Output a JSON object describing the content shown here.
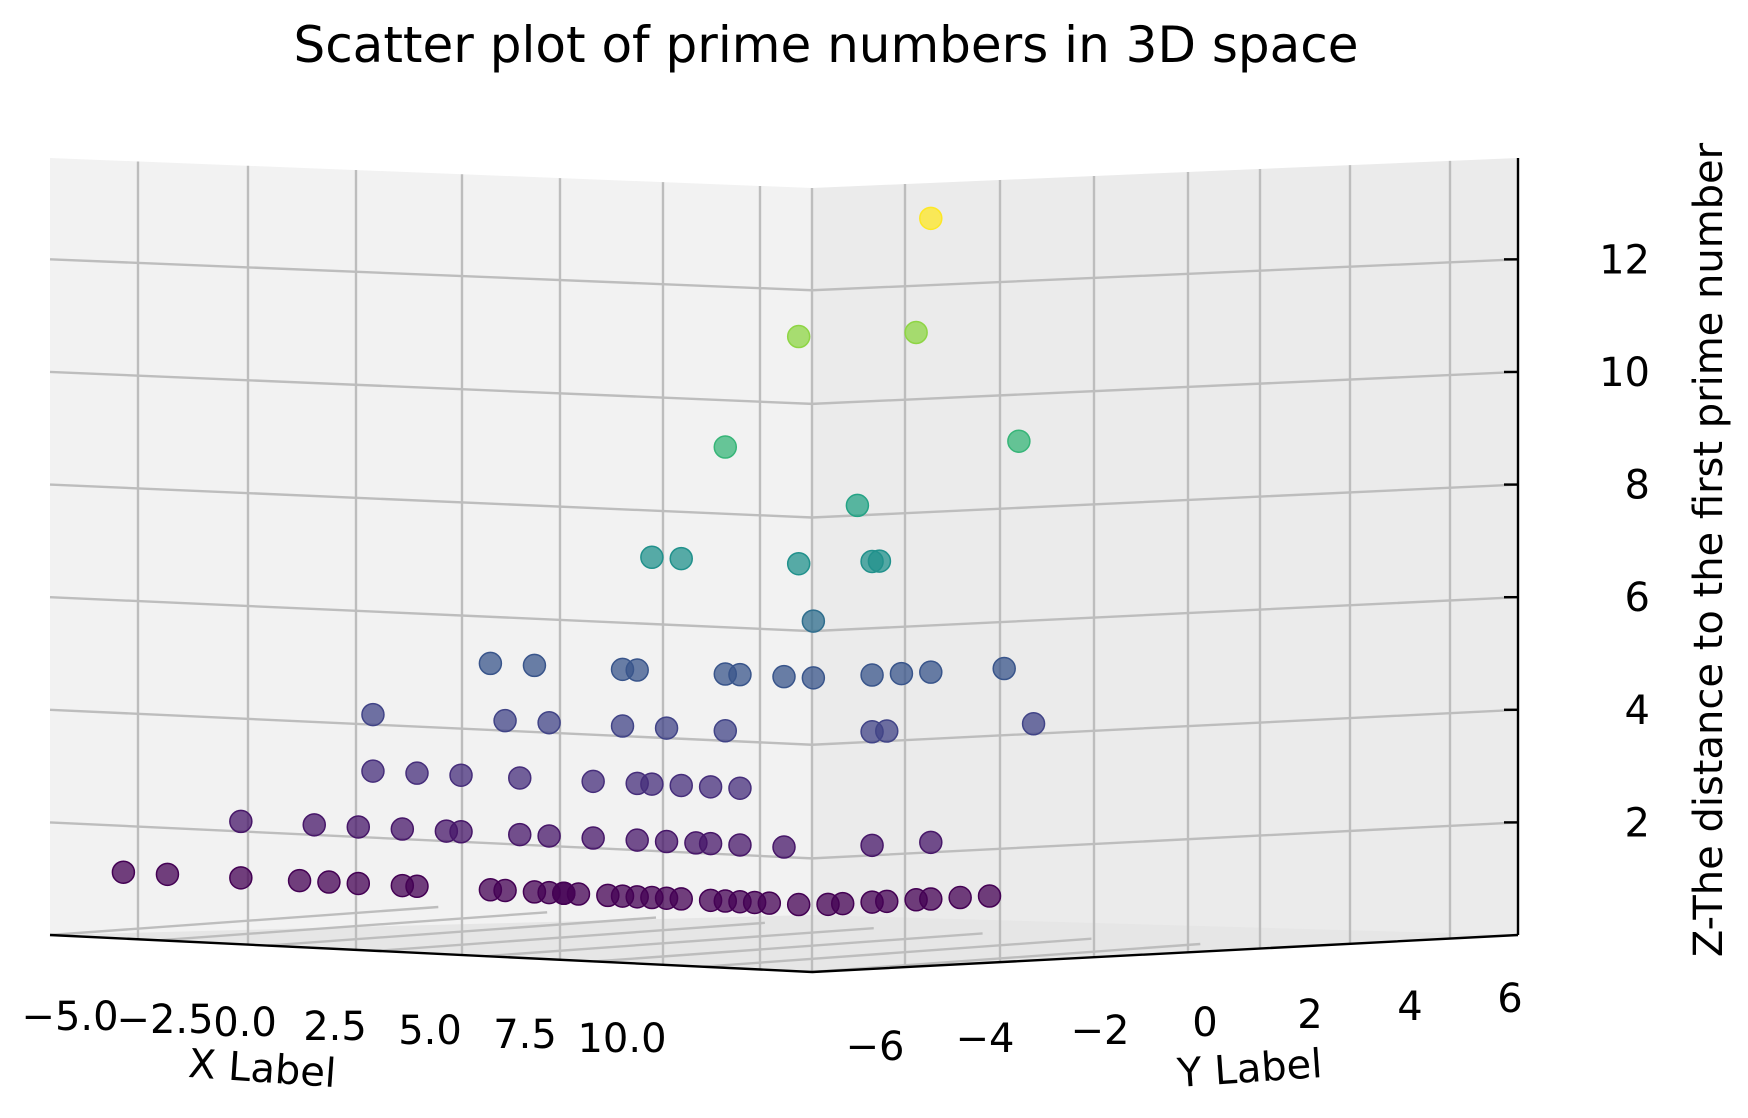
{
  "chart_data": {
    "type": "scatter",
    "title": "Scatter plot of prime numbers in 3D space",
    "xlabel": "X Label",
    "ylabel": "Y Label",
    "zlabel": "Z-The distance to the first prime number",
    "x_ticks": [
      "−5.0",
      "−2.5",
      "0.0",
      "2.5",
      "5.0",
      "7.5",
      "10.0"
    ],
    "y_ticks": [
      "−6",
      "−4",
      "−2",
      "0",
      "2",
      "4",
      "6"
    ],
    "z_ticks": [
      "2",
      "4",
      "6",
      "8",
      "10",
      "12"
    ],
    "z_range": [
      0.0,
      13.8
    ],
    "colormap": "viridis",
    "colors": {
      "low": "#440154",
      "mid": "#21918c",
      "high": "#fde725",
      "pane": "#f2f2f2",
      "grid": "#bdbdbd"
    },
    "points_note_none": "",
    "series": [
      {
        "values": [
          {
            "h": 0.05,
            "z": 1.0
          },
          {
            "h": 0.08,
            "z": 1.0
          },
          {
            "h": 0.13,
            "z": 1.0
          },
          {
            "h": 0.17,
            "z": 1.0
          },
          {
            "h": 0.19,
            "z": 1.0
          },
          {
            "h": 0.21,
            "z": 1.0
          },
          {
            "h": 0.24,
            "z": 1.0
          },
          {
            "h": 0.25,
            "z": 1.0
          },
          {
            "h": 0.3,
            "z": 1.0
          },
          {
            "h": 0.31,
            "z": 1.0
          },
          {
            "h": 0.33,
            "z": 1.0
          },
          {
            "h": 0.34,
            "z": 1.0
          },
          {
            "h": 0.35,
            "z": 1.0
          },
          {
            "h": 0.35,
            "z": 1.0
          },
          {
            "h": 0.36,
            "z": 1.0
          },
          {
            "h": 0.38,
            "z": 1.0
          },
          {
            "h": 0.39,
            "z": 1.0
          },
          {
            "h": 0.4,
            "z": 1.0
          },
          {
            "h": 0.41,
            "z": 1.0
          },
          {
            "h": 0.42,
            "z": 1.0
          },
          {
            "h": 0.43,
            "z": 1.0
          },
          {
            "h": 0.45,
            "z": 1.0
          },
          {
            "h": 0.46,
            "z": 1.0
          },
          {
            "h": 0.47,
            "z": 1.0
          },
          {
            "h": 0.48,
            "z": 1.0
          },
          {
            "h": 0.49,
            "z": 1.0
          },
          {
            "h": 0.51,
            "z": 1.0
          },
          {
            "h": 0.53,
            "z": 1.0
          },
          {
            "h": 0.54,
            "z": 1.0
          },
          {
            "h": 0.56,
            "z": 1.0
          },
          {
            "h": 0.57,
            "z": 1.0
          },
          {
            "h": 0.59,
            "z": 1.0
          },
          {
            "h": 0.6,
            "z": 1.0
          },
          {
            "h": 0.62,
            "z": 1.0
          },
          {
            "h": 0.64,
            "z": 1.0
          },
          {
            "h": 0.13,
            "z": 2.0
          },
          {
            "h": 0.18,
            "z": 2.0
          },
          {
            "h": 0.21,
            "z": 2.0
          },
          {
            "h": 0.24,
            "z": 2.0
          },
          {
            "h": 0.27,
            "z": 2.0
          },
          {
            "h": 0.28,
            "z": 2.0
          },
          {
            "h": 0.32,
            "z": 2.0
          },
          {
            "h": 0.34,
            "z": 2.0
          },
          {
            "h": 0.37,
            "z": 2.0
          },
          {
            "h": 0.4,
            "z": 2.0
          },
          {
            "h": 0.42,
            "z": 2.0
          },
          {
            "h": 0.44,
            "z": 2.0
          },
          {
            "h": 0.45,
            "z": 2.0
          },
          {
            "h": 0.47,
            "z": 2.0
          },
          {
            "h": 0.5,
            "z": 2.0
          },
          {
            "h": 0.56,
            "z": 2.0
          },
          {
            "h": 0.6,
            "z": 2.0
          },
          {
            "h": 0.22,
            "z": 3.0
          },
          {
            "h": 0.25,
            "z": 3.0
          },
          {
            "h": 0.28,
            "z": 3.0
          },
          {
            "h": 0.32,
            "z": 3.0
          },
          {
            "h": 0.37,
            "z": 3.0
          },
          {
            "h": 0.4,
            "z": 3.0
          },
          {
            "h": 0.41,
            "z": 3.0
          },
          {
            "h": 0.43,
            "z": 3.0
          },
          {
            "h": 0.45,
            "z": 3.0
          },
          {
            "h": 0.47,
            "z": 3.0
          },
          {
            "h": 0.22,
            "z": 4.0
          },
          {
            "h": 0.31,
            "z": 4.0
          },
          {
            "h": 0.34,
            "z": 4.0
          },
          {
            "h": 0.39,
            "z": 4.0
          },
          {
            "h": 0.42,
            "z": 4.0
          },
          {
            "h": 0.46,
            "z": 4.0
          },
          {
            "h": 0.56,
            "z": 4.0
          },
          {
            "h": 0.57,
            "z": 4.0
          },
          {
            "h": 0.67,
            "z": 4.0
          },
          {
            "h": 0.3,
            "z": 5.0
          },
          {
            "h": 0.33,
            "z": 5.0
          },
          {
            "h": 0.39,
            "z": 5.0
          },
          {
            "h": 0.4,
            "z": 5.0
          },
          {
            "h": 0.46,
            "z": 5.0
          },
          {
            "h": 0.47,
            "z": 5.0
          },
          {
            "h": 0.5,
            "z": 5.0
          },
          {
            "h": 0.52,
            "z": 5.0
          },
          {
            "h": 0.56,
            "z": 5.0
          },
          {
            "h": 0.58,
            "z": 5.0
          },
          {
            "h": 0.6,
            "z": 5.0
          },
          {
            "h": 0.65,
            "z": 5.0
          },
          {
            "h": 0.52,
            "z": 6.0
          },
          {
            "h": 0.41,
            "z": 7.0
          },
          {
            "h": 0.43,
            "z": 7.0
          },
          {
            "h": 0.51,
            "z": 7.0
          },
          {
            "h": 0.56,
            "z": 7.0
          },
          {
            "h": 0.565,
            "z": 7.0
          },
          {
            "h": 0.55,
            "z": 8.0
          },
          {
            "h": 0.46,
            "z": 9.0
          },
          {
            "h": 0.66,
            "z": 9.0
          },
          {
            "h": 0.51,
            "z": 11.0
          },
          {
            "h": 0.59,
            "z": 11.0
          },
          {
            "h": 0.6,
            "z": 13.0
          }
        ]
      }
    ]
  }
}
